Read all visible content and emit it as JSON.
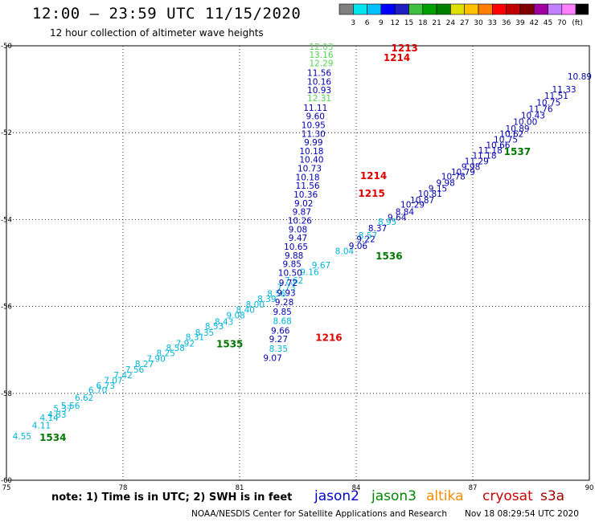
{
  "header": {
    "title": "12:00 – 23:59 UTC 11/15/2020",
    "subtitle": "12 hour collection of altimeter wave heights"
  },
  "color_scale": {
    "labels": [
      "3",
      "6",
      "9",
      "12",
      "15",
      "18",
      "21",
      "24",
      "27",
      "30",
      "33",
      "36",
      "39",
      "42",
      "45",
      "70",
      "(ft)"
    ],
    "colors": [
      "#808080",
      "#00e5ee",
      "#00c0ff",
      "#0000ff",
      "#2020c0",
      "#40c040",
      "#00a000",
      "#008000",
      "#e0e000",
      "#ffc000",
      "#ff8000",
      "#ff0000",
      "#c00000",
      "#800000",
      "#a000a0",
      "#c080ff",
      "#ff80ff",
      "#000000"
    ]
  },
  "footer": {
    "note": "note: 1) Time is in UTC; 2) SWH is in feet",
    "credit": "NOAA/NESDIS Center for Satellite Applications and Research",
    "timestamp": "Nov 18 08:29:54 UTC 2020",
    "satellites": [
      {
        "name": "jason2",
        "color": "#0000cc"
      },
      {
        "name": "jason3",
        "color": "#008800"
      },
      {
        "name": "altika",
        "color": "#ff8c00"
      },
      {
        "name": "cryosat",
        "color": "#cc0000"
      },
      {
        "name": "s3a",
        "color": "#990000"
      }
    ]
  },
  "chart_data": {
    "type": "scatter",
    "xlim": [
      75,
      90
    ],
    "ylim": [
      -60,
      -50
    ],
    "x_ticks": [
      "75",
      "78",
      "81",
      "84",
      "87",
      "90"
    ],
    "y_ticks": [
      "-50",
      "-52",
      "-54",
      "-56",
      "-58",
      "-60"
    ],
    "grid": true,
    "colors": {
      "cyan": "#00b4d8",
      "blue": "#0000b0",
      "green": "#55d455",
      "dkgreen": "#007700",
      "red": "#dd0000"
    },
    "tracks": [
      {
        "color": "cyan",
        "points": [
          {
            "x": 75.4,
            "y": -58.98,
            "v": "4.55"
          },
          {
            "x": 75.9,
            "y": -58.73,
            "v": "4.11"
          },
          {
            "x": 76.3,
            "y": -58.48,
            "v": "4.83"
          },
          {
            "x": 76.65,
            "y": -58.28,
            "v": "5.56"
          },
          {
            "x": 77.0,
            "y": -58.1,
            "v": "6.62"
          },
          {
            "x": 77.35,
            "y": -57.92,
            "v": "6.70"
          },
          {
            "x": 77.75,
            "y": -57.7,
            "v": "7.07"
          },
          {
            "x": 78.3,
            "y": -57.45,
            "v": "7.56"
          },
          {
            "x": 78.85,
            "y": -57.2,
            "v": "7.90"
          },
          {
            "x": 79.35,
            "y": -56.95,
            "v": "8.58"
          },
          {
            "x": 79.85,
            "y": -56.7,
            "v": "8.31"
          },
          {
            "x": 80.35,
            "y": -56.45,
            "v": "8.53"
          },
          {
            "x": 80.9,
            "y": -56.2,
            "v": "9.08"
          },
          {
            "x": 81.4,
            "y": -55.95,
            "v": "8.00"
          },
          {
            "x": 81.95,
            "y": -55.7,
            "v": "8.56"
          },
          {
            "x": 82.4,
            "y": -55.4,
            "v": "7.62"
          },
          {
            "x": 82.8,
            "y": -55.2,
            "v": "9.16"
          }
        ]
      },
      {
        "color": "cyan",
        "points": [
          {
            "x": 76.1,
            "y": -58.56,
            "v": "4.14"
          },
          {
            "x": 76.45,
            "y": -58.35,
            "v": "5.37"
          },
          {
            "x": 77.55,
            "y": -57.82,
            "v": "6.73"
          },
          {
            "x": 78.0,
            "y": -57.58,
            "v": "7.42"
          },
          {
            "x": 78.55,
            "y": -57.32,
            "v": "8.27"
          },
          {
            "x": 79.1,
            "y": -57.07,
            "v": "8.25"
          },
          {
            "x": 79.6,
            "y": -56.85,
            "v": "7.92"
          },
          {
            "x": 80.1,
            "y": -56.6,
            "v": "8.35"
          },
          {
            "x": 80.6,
            "y": -56.35,
            "v": "8.43"
          },
          {
            "x": 81.15,
            "y": -56.07,
            "v": "8.40"
          },
          {
            "x": 81.7,
            "y": -55.82,
            "v": "8.39"
          },
          {
            "x": 82.2,
            "y": -55.55,
            "v": "7.73"
          },
          {
            "x": 83.1,
            "y": -55.05,
            "v": "9.67"
          },
          {
            "x": 83.7,
            "y": -54.72,
            "v": "8.04"
          },
          {
            "x": 84.3,
            "y": -54.36,
            "v": "8.57"
          },
          {
            "x": 84.8,
            "y": -54.05,
            "v": "8.95"
          }
        ]
      },
      {
        "color": "blue",
        "points": [
          {
            "x": 84.05,
            "y": -54.6,
            "v": "9.06"
          },
          {
            "x": 84.25,
            "y": -54.45,
            "v": "9.22"
          },
          {
            "x": 84.55,
            "y": -54.2,
            "v": "8.37"
          },
          {
            "x": 85.05,
            "y": -53.95,
            "v": "9.64"
          },
          {
            "x": 85.45,
            "y": -53.65,
            "v": "10.29"
          },
          {
            "x": 85.9,
            "y": -53.4,
            "v": "10.81"
          },
          {
            "x": 86.3,
            "y": -53.15,
            "v": "9.98"
          },
          {
            "x": 86.75,
            "y": -52.9,
            "v": "10.79"
          },
          {
            "x": 87.1,
            "y": -52.65,
            "v": "11.29"
          },
          {
            "x": 87.45,
            "y": -52.4,
            "v": "11.18"
          },
          {
            "x": 87.85,
            "y": -52.15,
            "v": "10.75"
          },
          {
            "x": 88.15,
            "y": -51.9,
            "v": "10.89"
          },
          {
            "x": 88.55,
            "y": -51.6,
            "v": "10.43"
          },
          {
            "x": 88.95,
            "y": -51.3,
            "v": "10.75"
          },
          {
            "x": 89.35,
            "y": -51.0,
            "v": "11.33"
          },
          {
            "x": 89.75,
            "y": -50.7,
            "v": "10.89"
          }
        ]
      },
      {
        "color": "blue",
        "points": [
          {
            "x": 85.25,
            "y": -53.82,
            "v": "8.84"
          },
          {
            "x": 85.7,
            "y": -53.55,
            "v": "10.87"
          },
          {
            "x": 86.1,
            "y": -53.28,
            "v": "9.15"
          },
          {
            "x": 86.5,
            "y": -53.0,
            "v": "10.78"
          },
          {
            "x": 86.95,
            "y": -52.78,
            "v": "9.98"
          },
          {
            "x": 87.3,
            "y": -52.52,
            "v": "11.18"
          },
          {
            "x": 87.65,
            "y": -52.28,
            "v": "10.66"
          },
          {
            "x": 88.0,
            "y": -52.02,
            "v": "10.62"
          },
          {
            "x": 88.35,
            "y": -51.75,
            "v": "10.00"
          },
          {
            "x": 88.75,
            "y": -51.45,
            "v": "11.76"
          },
          {
            "x": 89.15,
            "y": -51.15,
            "v": "11.51"
          }
        ]
      },
      {
        "color": "blue",
        "points": [
          {
            "x": 83.05,
            "y": -50.62,
            "v": "11.56"
          },
          {
            "x": 83.05,
            "y": -50.82,
            "v": "10.16"
          },
          {
            "x": 83.05,
            "y": -51.02,
            "v": "10.93"
          },
          {
            "x": 82.95,
            "y": -51.42,
            "v": "11.11"
          },
          {
            "x": 82.95,
            "y": -51.62,
            "v": "9.60"
          },
          {
            "x": 82.9,
            "y": -51.82,
            "v": "10.95"
          },
          {
            "x": 82.9,
            "y": -52.02,
            "v": "11.30"
          },
          {
            "x": 82.9,
            "y": -52.22,
            "v": "9.99"
          },
          {
            "x": 82.85,
            "y": -52.42,
            "v": "10.18"
          },
          {
            "x": 82.85,
            "y": -52.62,
            "v": "10.40"
          },
          {
            "x": 82.8,
            "y": -52.82,
            "v": "10.73"
          },
          {
            "x": 82.75,
            "y": -53.02,
            "v": "10.18"
          },
          {
            "x": 82.75,
            "y": -53.22,
            "v": "11.56"
          },
          {
            "x": 82.7,
            "y": -53.42,
            "v": "10.36"
          },
          {
            "x": 82.65,
            "y": -53.62,
            "v": "9.02"
          },
          {
            "x": 82.6,
            "y": -53.82,
            "v": "9.87"
          },
          {
            "x": 82.55,
            "y": -54.02,
            "v": "10.26"
          },
          {
            "x": 82.5,
            "y": -54.22,
            "v": "9.08"
          },
          {
            "x": 82.5,
            "y": -54.42,
            "v": "9.47"
          },
          {
            "x": 82.45,
            "y": -54.62,
            "v": "10.65"
          },
          {
            "x": 82.4,
            "y": -54.82,
            "v": "9.88"
          },
          {
            "x": 82.35,
            "y": -55.02,
            "v": "9.85"
          },
          {
            "x": 82.3,
            "y": -55.22,
            "v": "10.50"
          },
          {
            "x": 82.25,
            "y": -55.45,
            "v": "9.72"
          },
          {
            "x": 82.2,
            "y": -55.68,
            "v": "9.93"
          },
          {
            "x": 82.15,
            "y": -55.9,
            "v": "9.28"
          },
          {
            "x": 82.1,
            "y": -56.12,
            "v": "9.85"
          },
          {
            "x": 82.05,
            "y": -56.55,
            "v": "9.66"
          },
          {
            "x": 82.0,
            "y": -56.75,
            "v": "9.27"
          },
          {
            "x": 81.85,
            "y": -57.18,
            "v": "9.07"
          }
        ]
      },
      {
        "color": "cyan",
        "points": [
          {
            "x": 82.1,
            "y": -56.33,
            "v": "8.68"
          },
          {
            "x": 82.0,
            "y": -56.97,
            "v": "8.35"
          }
        ]
      },
      {
        "color": "green",
        "points": [
          {
            "x": 83.1,
            "y": -50.02,
            "v": "12.03"
          },
          {
            "x": 83.1,
            "y": -50.2,
            "v": "13.16"
          },
          {
            "x": 83.1,
            "y": -50.4,
            "v": "12.29"
          },
          {
            "x": 83.05,
            "y": -51.2,
            "v": "12.31"
          }
        ]
      }
    ],
    "labels": [
      {
        "x": 75.85,
        "y": -59.0,
        "v": "1534",
        "color": "dkgreen"
      },
      {
        "x": 80.4,
        "y": -56.85,
        "v": "1535",
        "color": "dkgreen"
      },
      {
        "x": 84.5,
        "y": -54.82,
        "v": "1536",
        "color": "dkgreen"
      },
      {
        "x": 87.8,
        "y": -52.42,
        "v": "1537",
        "color": "dkgreen"
      },
      {
        "x": 84.9,
        "y": -50.04,
        "v": "1213",
        "color": "red"
      },
      {
        "x": 84.7,
        "y": -50.26,
        "v": "1214",
        "color": "red"
      },
      {
        "x": 84.1,
        "y": -52.98,
        "v": "1214",
        "color": "red"
      },
      {
        "x": 84.05,
        "y": -53.38,
        "v": "1215",
        "color": "red"
      },
      {
        "x": 82.95,
        "y": -56.7,
        "v": "1216",
        "color": "red"
      }
    ]
  }
}
